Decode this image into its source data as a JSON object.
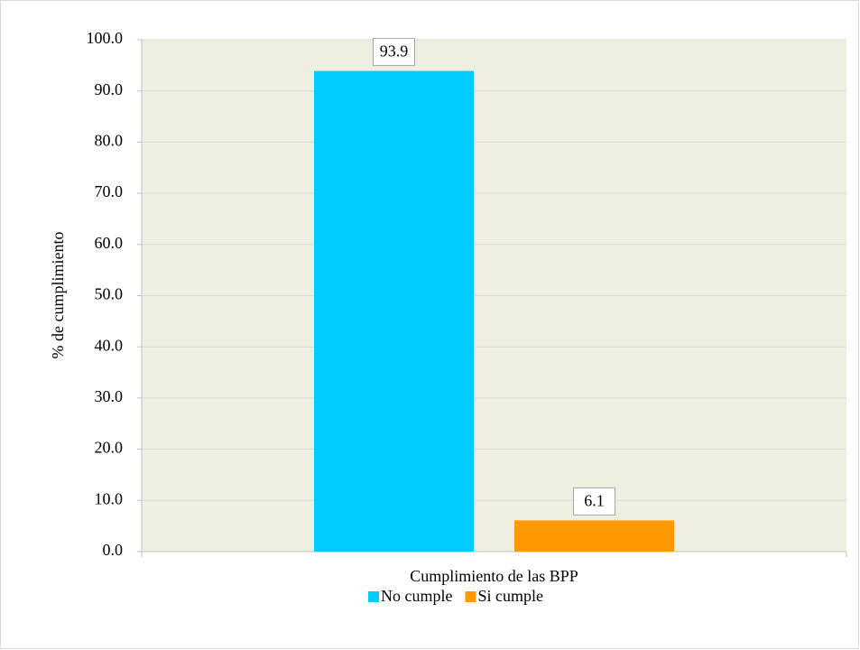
{
  "chart_data": {
    "type": "bar",
    "categories": [
      "Cumplimiento de las BPP"
    ],
    "series": [
      {
        "name": "No cumple",
        "color": "#00ccff",
        "values": [
          93.9
        ]
      },
      {
        "name": "Si cumple",
        "color": "#ff9900",
        "values": [
          6.1
        ]
      }
    ],
    "ylabel": "% de cumplimiento",
    "ylim": [
      0,
      100
    ],
    "yticks": [
      {
        "value": 0,
        "label": "0.0"
      },
      {
        "value": 10,
        "label": "10.0"
      },
      {
        "value": 20,
        "label": "20.0"
      },
      {
        "value": 30,
        "label": "30.0"
      },
      {
        "value": 40,
        "label": "40.0"
      },
      {
        "value": 50,
        "label": "50.0"
      },
      {
        "value": 60,
        "label": "60.0"
      },
      {
        "value": 70,
        "label": "70.0"
      },
      {
        "value": 80,
        "label": "80.0"
      },
      {
        "value": 90,
        "label": "90.0"
      },
      {
        "value": 100,
        "label": "100.0"
      }
    ],
    "grid": true,
    "legend": "bottom"
  }
}
